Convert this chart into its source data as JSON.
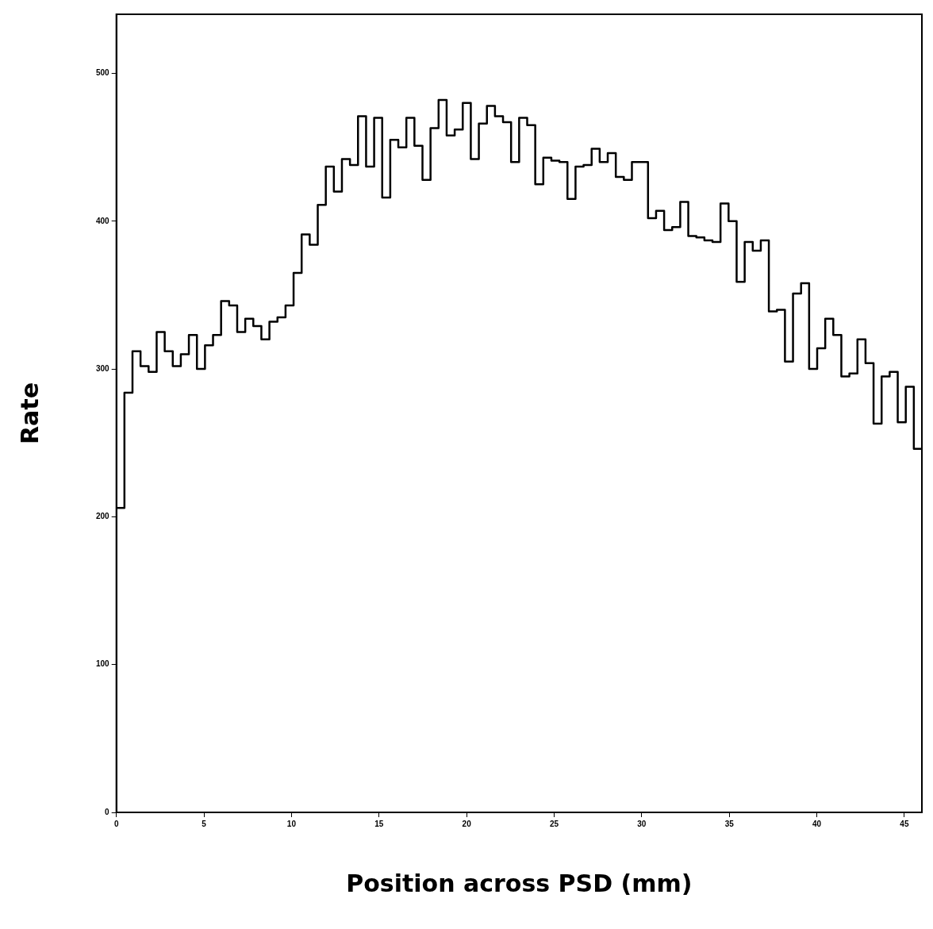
{
  "chart_data": {
    "type": "histogram",
    "xlabel": "Position across PSD (mm)",
    "ylabel": "Rate",
    "bins": [
      0,
      0.46,
      0.92,
      1.38,
      1.84,
      2.3,
      2.76,
      3.22,
      3.68,
      4.14,
      4.6,
      5.06,
      5.52,
      5.98,
      6.44,
      6.9,
      7.36,
      7.82,
      8.28,
      8.74,
      9.2,
      9.66,
      10.12,
      10.58,
      11.04,
      11.5,
      11.96,
      12.42,
      12.88,
      13.34,
      13.8,
      14.26,
      14.72,
      15.18,
      15.64,
      16.1,
      16.56,
      17.02,
      17.48,
      17.94,
      18.4,
      18.86,
      19.32,
      19.78,
      20.24,
      20.7,
      21.16,
      21.62,
      22.08,
      22.54,
      23,
      23.46,
      23.92,
      24.38,
      24.84,
      25.3,
      25.76,
      26.22,
      26.68,
      27.14,
      27.6,
      28.06,
      28.52,
      28.98,
      29.44,
      29.9,
      30.36,
      30.82,
      31.28,
      31.74,
      32.2,
      32.66,
      33.12,
      33.58,
      34.04,
      34.5,
      34.96,
      35.42,
      35.88,
      36.34,
      36.8,
      37.26,
      37.72,
      38.18,
      38.64,
      39.1,
      39.56,
      40.02,
      40.48,
      40.94,
      41.4,
      41.86,
      42.32,
      42.78,
      43.24,
      43.7,
      44.16,
      44.62,
      45.08,
      45.54,
      46
    ],
    "values": [
      206,
      284,
      312,
      302,
      298,
      325,
      312,
      302,
      310,
      323,
      300,
      316,
      323,
      346,
      343,
      325,
      334,
      329,
      320,
      332,
      335,
      343,
      365,
      391,
      384,
      411,
      437,
      420,
      442,
      438,
      471,
      437,
      470,
      416,
      455,
      450,
      470,
      451,
      428,
      463,
      482,
      458,
      462,
      480,
      442,
      466,
      478,
      471,
      467,
      440,
      470,
      465,
      425,
      443,
      441,
      440,
      415,
      437,
      438,
      449,
      440,
      446,
      430,
      428,
      440,
      440,
      402,
      407,
      394,
      396,
      413,
      390,
      389,
      387,
      386,
      412,
      400,
      359,
      386,
      380,
      387,
      339,
      340,
      305,
      351,
      358,
      300,
      314,
      334,
      323,
      295,
      297,
      320,
      304,
      263,
      295,
      298,
      264,
      288,
      246
    ],
    "color": "#000000",
    "xlim": [
      0,
      46
    ],
    "ylim": [
      0,
      540
    ],
    "xticks": [
      0,
      5,
      10,
      15,
      20,
      25,
      30,
      35,
      40,
      45
    ],
    "yticks": [
      0,
      100,
      200,
      300,
      400,
      500
    ],
    "grid": false,
    "legend": false
  }
}
